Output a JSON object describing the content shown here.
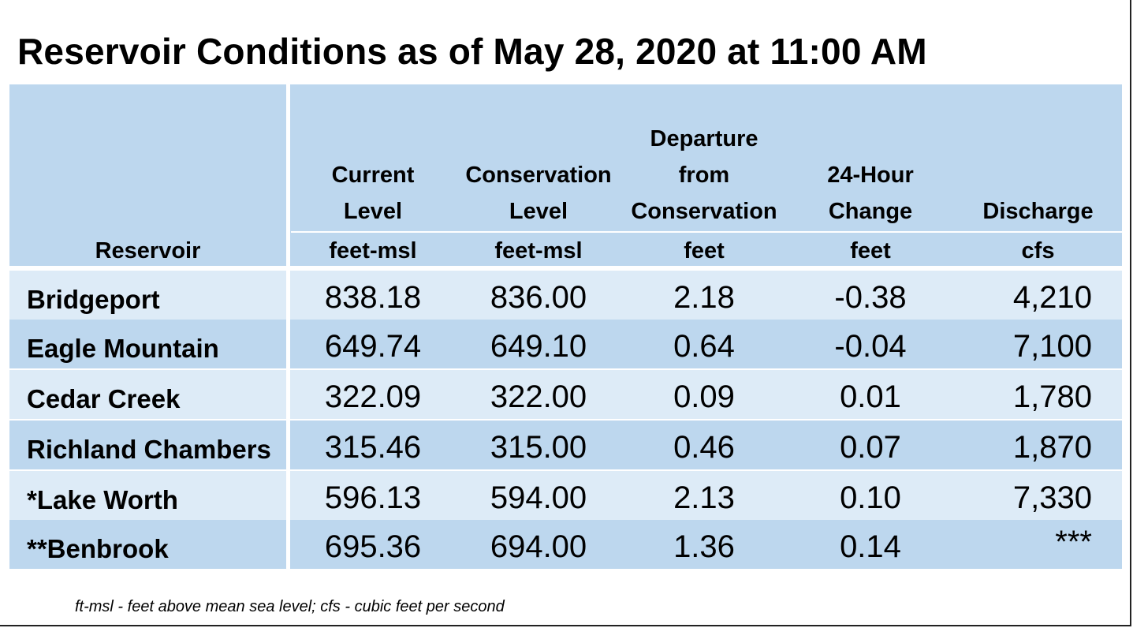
{
  "title": "Reservoir Conditions as of May 28, 2020 at 11:00 AM",
  "columns": [
    {
      "label": [
        "",
        "",
        "",
        "Reservoir"
      ],
      "unit": ""
    },
    {
      "label": [
        "",
        "Current",
        "Level"
      ],
      "unit": "feet-msl"
    },
    {
      "label": [
        "",
        "Conservation",
        "Level"
      ],
      "unit": "feet-msl"
    },
    {
      "label": [
        "Departure",
        "from",
        "Conservation"
      ],
      "unit": "feet"
    },
    {
      "label": [
        "",
        "24-Hour",
        "Change"
      ],
      "unit": "feet"
    },
    {
      "label": [
        "",
        "",
        "Discharge"
      ],
      "unit": "cfs"
    }
  ],
  "rows": [
    {
      "reservoir": "Bridgeport",
      "current": "838.18",
      "conservation": "836.00",
      "departure": "2.18",
      "change": "-0.38",
      "discharge": "4,210"
    },
    {
      "reservoir": "Eagle Mountain",
      "current": "649.74",
      "conservation": "649.10",
      "departure": "0.64",
      "change": "-0.04",
      "discharge": "7,100"
    },
    {
      "reservoir": "Cedar Creek",
      "current": "322.09",
      "conservation": "322.00",
      "departure": "0.09",
      "change": "0.01",
      "discharge": "1,780"
    },
    {
      "reservoir": "Richland Chambers",
      "current": "315.46",
      "conservation": "315.00",
      "departure": "0.46",
      "change": "0.07",
      "discharge": "1,870"
    },
    {
      "reservoir": "*Lake Worth",
      "current": "596.13",
      "conservation": "594.00",
      "departure": "2.13",
      "change": "0.10",
      "discharge": "7,330"
    },
    {
      "reservoir": "**Benbrook",
      "current": "695.36",
      "conservation": "694.00",
      "departure": "1.36",
      "change": "0.14",
      "discharge": "***"
    }
  ],
  "footnote": "ft-msl - feet above mean sea level; cfs - cubic feet per second",
  "colors": {
    "header": "#bdd7ee",
    "row_light": "#ddebf7",
    "row_dark": "#bdd7ee"
  }
}
